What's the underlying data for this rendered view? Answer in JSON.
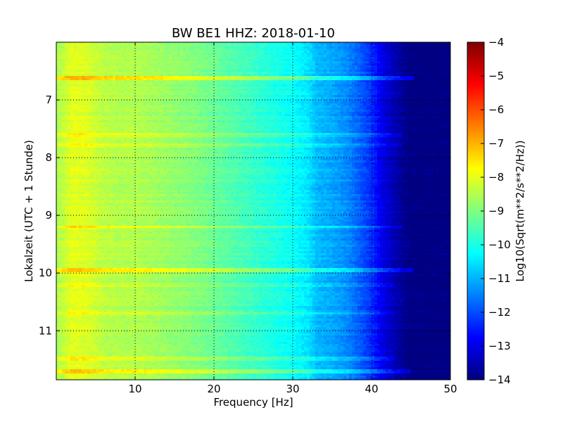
{
  "chart_data": {
    "type": "heatmap",
    "title": "BW BE1 HHZ: 2018-01-10",
    "xlabel": "Frequency [Hz]",
    "ylabel": "Lokalzeit (UTC + 1 Stunde)",
    "colorbar_label": "Log10(Sqrt(m**2/s**2/Hz))",
    "xlim": [
      0,
      50
    ],
    "ylim": [
      11.85,
      6.0
    ],
    "y_inverted": true,
    "grid": true,
    "colormap": "jet",
    "x_ticks": [
      10,
      20,
      30,
      40,
      50
    ],
    "x_tick_labels": [
      "10",
      "20",
      "30",
      "40",
      "50"
    ],
    "y_ticks": [
      7,
      8,
      9,
      10,
      11
    ],
    "y_tick_labels": [
      "7",
      "8",
      "9",
      "10",
      "11"
    ],
    "color_range": [
      -14,
      -4
    ],
    "color_ticks": [
      -4,
      -5,
      -6,
      -7,
      -8,
      -9,
      -10,
      -11,
      -12,
      -13,
      -14
    ],
    "color_tick_labels": [
      "−4",
      "−5",
      "−6",
      "−7",
      "−8",
      "−9",
      "−10",
      "−11",
      "−12",
      "−13",
      "−14"
    ],
    "frequency_profile": {
      "freq": [
        0,
        2,
        4,
        6,
        8,
        10,
        12,
        15,
        18,
        20,
        22,
        25,
        28,
        30,
        32,
        33,
        35,
        37,
        38,
        40,
        41,
        42,
        43,
        44,
        45,
        50
      ],
      "value": [
        -8.6,
        -8.0,
        -8.1,
        -8.4,
        -8.5,
        -8.5,
        -8.6,
        -8.8,
        -9.0,
        -9.2,
        -9.4,
        -9.7,
        -10.0,
        -10.2,
        -10.5,
        -10.9,
        -11.1,
        -11.4,
        -11.7,
        -12.3,
        -12.8,
        -13.2,
        -13.5,
        -13.8,
        -14.0,
        -14.0
      ]
    },
    "bright_bands": [
      {
        "time": 6.63,
        "offset": 1.0,
        "fmax": 45.5
      },
      {
        "time": 7.6,
        "offset": 0.45,
        "fmax": 44
      },
      {
        "time": 7.8,
        "offset": 0.35,
        "fmax": 44
      },
      {
        "time": 9.2,
        "offset": 0.7,
        "fmax": 44
      },
      {
        "time": 9.95,
        "offset": 0.9,
        "fmax": 45.5
      },
      {
        "time": 10.2,
        "offset": 0.3,
        "fmax": 43
      },
      {
        "time": 10.7,
        "offset": 0.35,
        "fmax": 43
      },
      {
        "time": 11.48,
        "offset": 0.4,
        "fmax": 43
      },
      {
        "time": 11.7,
        "offset": 0.95,
        "fmax": 45
      }
    ]
  }
}
